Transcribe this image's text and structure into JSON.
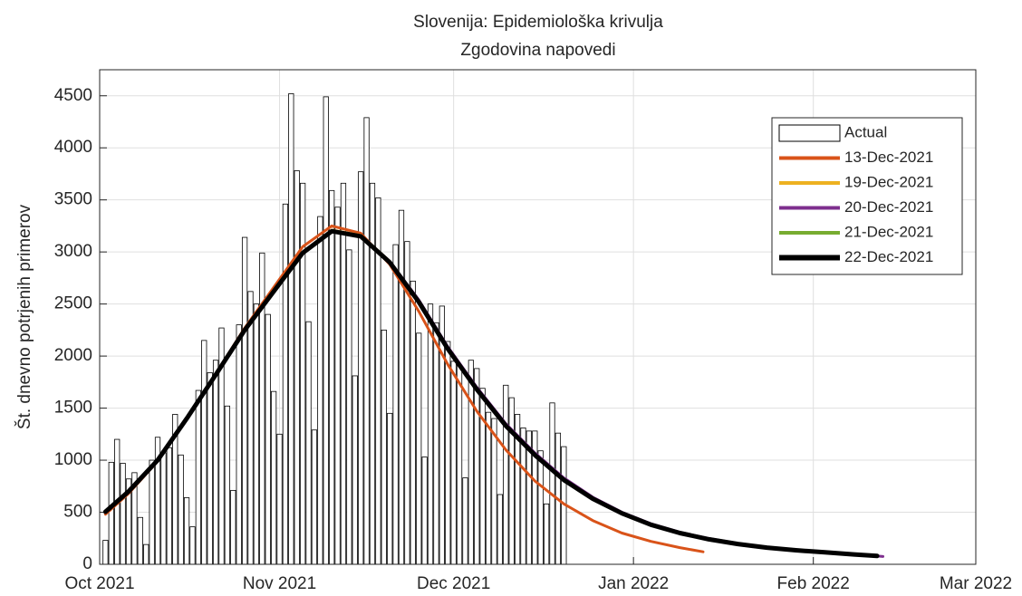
{
  "chart_data": {
    "type": "combo",
    "title": [
      "Slovenija: Epidemiološka krivulja",
      "Zgodovina napovedi"
    ],
    "ylabel": "Št. dnevno potrjenih primerov",
    "xlim": [
      0,
      151
    ],
    "xticks": [
      {
        "value": 0,
        "label": "Oct 2021"
      },
      {
        "value": 31,
        "label": "Nov 2021"
      },
      {
        "value": 61,
        "label": "Dec 2021"
      },
      {
        "value": 92,
        "label": "Jan 2022"
      },
      {
        "value": 123,
        "label": "Feb 2022"
      },
      {
        "value": 151,
        "label": "Mar 2022"
      }
    ],
    "ylim": [
      0,
      4750
    ],
    "yticks": [
      0,
      500,
      1000,
      1500,
      2000,
      2500,
      3000,
      3500,
      4000,
      4500
    ],
    "grid": true,
    "legend": "upper right",
    "series": [
      {
        "name": "Actual",
        "type": "bar",
        "color": "#ffffff",
        "x": [
          1,
          2,
          3,
          4,
          5,
          6,
          7,
          8,
          9,
          10,
          11,
          12,
          13,
          14,
          15,
          16,
          17,
          18,
          19,
          20,
          21,
          22,
          23,
          24,
          25,
          26,
          27,
          28,
          29,
          30,
          31,
          32,
          33,
          34,
          35,
          36,
          37,
          38,
          39,
          40,
          41,
          42,
          43,
          44,
          45,
          46,
          47,
          48,
          49,
          50,
          51,
          52,
          53,
          54,
          55,
          56,
          57,
          58,
          59,
          60,
          61,
          62,
          63,
          64,
          65,
          66,
          67,
          68,
          69,
          70,
          71,
          72,
          73,
          74,
          75,
          76,
          77,
          78,
          79,
          80
        ],
        "values": [
          230,
          980,
          1200,
          970,
          820,
          880,
          450,
          190,
          1000,
          1220,
          1070,
          1120,
          1440,
          1050,
          640,
          360,
          1670,
          2150,
          1840,
          1960,
          2270,
          1520,
          710,
          2300,
          3140,
          2620,
          2500,
          2990,
          2400,
          1660,
          1250,
          3460,
          4520,
          3780,
          3660,
          2330,
          1290,
          3340,
          4490,
          3590,
          3430,
          3660,
          3020,
          1810,
          3770,
          4290,
          3660,
          3520,
          2250,
          1450,
          3070,
          3400,
          3100,
          2720,
          2220,
          1030,
          2500,
          2320,
          2480,
          2140,
          1950,
          1910,
          830,
          1960,
          1880,
          1690,
          1460,
          1400,
          670,
          1720,
          1600,
          1440,
          1310,
          1280,
          1280,
          1090,
          580,
          1550,
          1260,
          1130
        ]
      },
      {
        "name": "13-Dec-2021",
        "type": "line",
        "color": "#D95319",
        "width": 3,
        "x": [
          1,
          5,
          10,
          15,
          20,
          25,
          30,
          35,
          40,
          45,
          50,
          55,
          60,
          65,
          70,
          75,
          80,
          85,
          90,
          95,
          100,
          104
        ],
        "values": [
          480,
          680,
          990,
          1400,
          1830,
          2270,
          2660,
          3050,
          3250,
          3180,
          2880,
          2430,
          1920,
          1470,
          1100,
          800,
          580,
          420,
          300,
          220,
          160,
          120
        ]
      },
      {
        "name": "19-Dec-2021",
        "type": "line",
        "color": "#EDB120",
        "width": 3,
        "x": [
          1,
          5,
          10,
          15,
          20,
          25,
          30,
          35,
          40,
          45,
          50,
          55,
          60,
          65,
          70,
          75,
          80,
          85,
          90,
          95,
          100,
          105,
          110,
          115,
          120,
          125,
          130,
          134
        ],
        "values": [
          500,
          700,
          1000,
          1400,
          1820,
          2250,
          2630,
          3000,
          3210,
          3160,
          2910,
          2530,
          2080,
          1690,
          1340,
          1060,
          820,
          640,
          495,
          385,
          305,
          245,
          198,
          162,
          137,
          117,
          97,
          82
        ]
      },
      {
        "name": "20-Dec-2021",
        "type": "line",
        "color": "#7E2F8E",
        "width": 3,
        "x": [
          1,
          5,
          10,
          15,
          20,
          25,
          30,
          35,
          40,
          45,
          50,
          55,
          60,
          65,
          70,
          75,
          80,
          85,
          90,
          95,
          100,
          105,
          110,
          115,
          120,
          125,
          130,
          135
        ],
        "values": [
          500,
          700,
          1000,
          1400,
          1820,
          2250,
          2620,
          2990,
          3200,
          3150,
          2910,
          2540,
          2090,
          1700,
          1350,
          1070,
          830,
          645,
          500,
          390,
          308,
          248,
          200,
          165,
          139,
          118,
          98,
          75
        ]
      },
      {
        "name": "21-Dec-2021",
        "type": "line",
        "color": "#77AC30",
        "width": 3,
        "x": [
          1,
          5,
          10,
          15,
          20,
          25,
          30,
          35,
          40,
          45,
          50,
          55,
          60,
          65,
          70,
          75,
          80,
          85,
          90,
          95,
          100,
          105,
          110,
          115,
          120,
          125,
          130,
          134
        ],
        "values": [
          505,
          700,
          1000,
          1400,
          1820,
          2250,
          2620,
          2990,
          3200,
          3150,
          2900,
          2520,
          2070,
          1680,
          1330,
          1050,
          810,
          630,
          490,
          380,
          300,
          240,
          195,
          160,
          135,
          115,
          95,
          80
        ]
      },
      {
        "name": "22-Dec-2021",
        "type": "line",
        "color": "#000000",
        "width": 5,
        "x": [
          1,
          5,
          10,
          15,
          20,
          25,
          30,
          35,
          40,
          45,
          50,
          55,
          60,
          65,
          70,
          75,
          80,
          85,
          90,
          95,
          100,
          105,
          110,
          115,
          120,
          125,
          130,
          134
        ],
        "values": [
          505,
          700,
          1000,
          1400,
          1820,
          2250,
          2620,
          2990,
          3200,
          3150,
          2900,
          2520,
          2070,
          1680,
          1330,
          1050,
          810,
          630,
          490,
          380,
          300,
          240,
          195,
          160,
          135,
          115,
          95,
          80
        ]
      }
    ]
  }
}
